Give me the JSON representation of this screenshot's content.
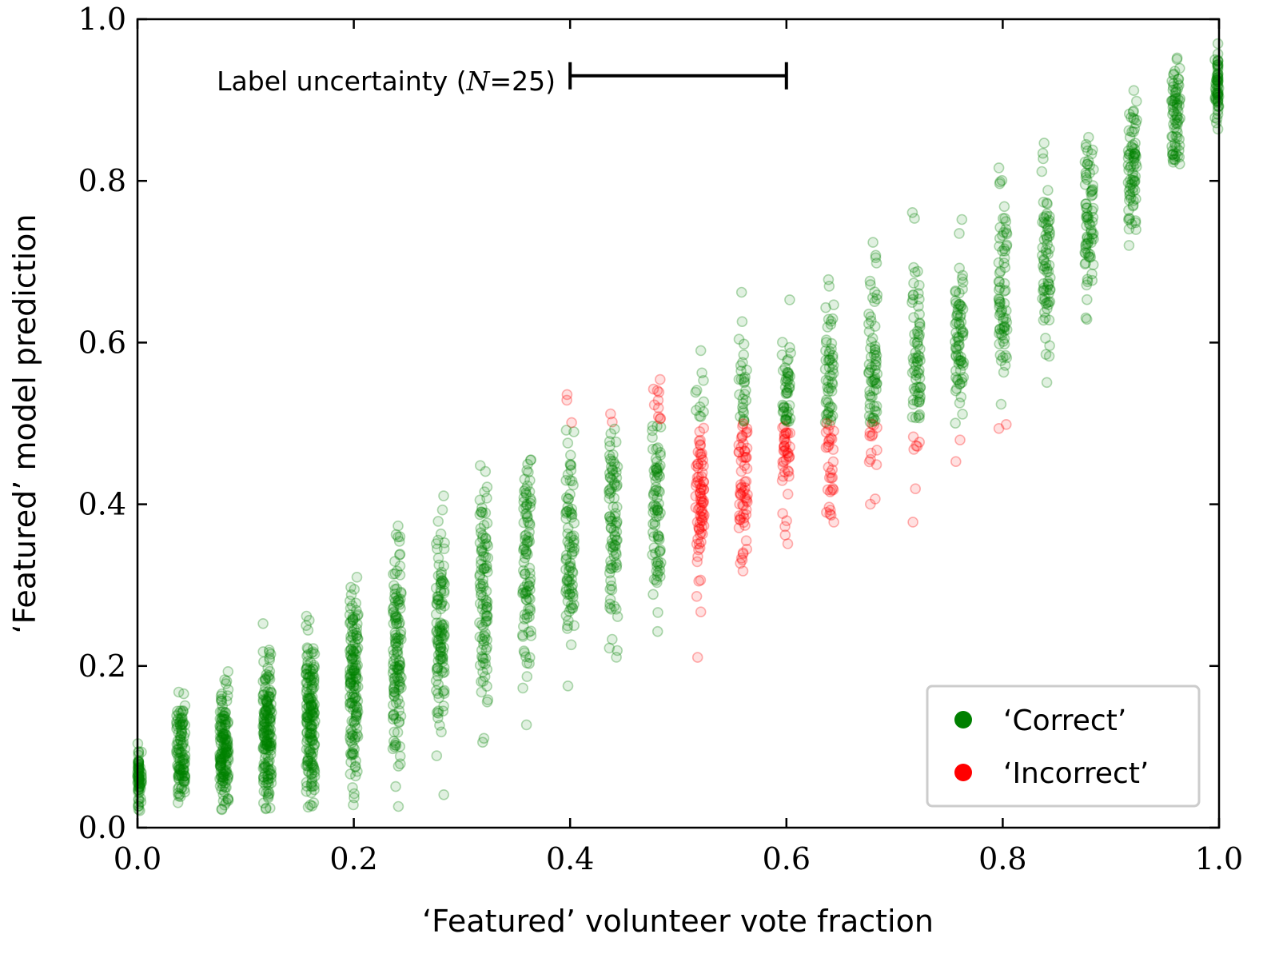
{
  "chart_data": {
    "type": "scatter",
    "title": "",
    "xlabel": "‘Featured’ volunteer vote fraction",
    "ylabel": "‘Featured’ model prediction",
    "xlim": [
      0.0,
      1.0
    ],
    "ylim": [
      0.0,
      1.0
    ],
    "xticks": [
      "0.0",
      "0.2",
      "0.4",
      "0.6",
      "0.8",
      "1.0"
    ],
    "yticks": [
      "0.0",
      "0.2",
      "0.4",
      "0.6",
      "0.8",
      "1.0"
    ],
    "grid": false,
    "legend_position": "bottom-right",
    "annotation": {
      "text_prefix": "Label uncertainty (",
      "text_var": "N",
      "text_eq": "=25)",
      "x_start": 0.4,
      "x_end": 0.6,
      "y": 0.93
    },
    "series": [
      {
        "name": "‘Correct’",
        "color": "#008000",
        "rule": "prediction on same side of 0.5 as vote fraction"
      },
      {
        "name": "‘Incorrect’",
        "color": "#ff0000",
        "rule": "prediction on opposite side of 0.5 from vote fraction"
      }
    ],
    "vote_fraction_levels": [
      0.0,
      0.04,
      0.08,
      0.12,
      0.16,
      0.2,
      0.24,
      0.28,
      0.32,
      0.36,
      0.4,
      0.44,
      0.48,
      0.52,
      0.56,
      0.6,
      0.64,
      0.68,
      0.72,
      0.76,
      0.8,
      0.84,
      0.88,
      0.92,
      0.96,
      1.0
    ],
    "points_per_level": [
      70,
      110,
      150,
      170,
      170,
      150,
      130,
      110,
      100,
      95,
      90,
      90,
      90,
      90,
      90,
      85,
      85,
      80,
      75,
      75,
      75,
      75,
      75,
      75,
      75,
      60
    ],
    "mean_prediction": [
      0.06,
      0.09,
      0.1,
      0.12,
      0.14,
      0.17,
      0.21,
      0.25,
      0.29,
      0.33,
      0.36,
      0.38,
      0.4,
      0.42,
      0.45,
      0.5,
      0.53,
      0.56,
      0.58,
      0.6,
      0.65,
      0.7,
      0.76,
      0.82,
      0.88,
      0.92
    ],
    "prediction_spread": [
      0.03,
      0.05,
      0.06,
      0.07,
      0.08,
      0.09,
      0.1,
      0.1,
      0.1,
      0.1,
      0.1,
      0.1,
      0.1,
      0.1,
      0.1,
      0.1,
      0.1,
      0.1,
      0.1,
      0.1,
      0.09,
      0.08,
      0.07,
      0.06,
      0.05,
      0.03
    ]
  },
  "legend": {
    "correct_label": "‘Correct’",
    "incorrect_label": "‘Incorrect’"
  }
}
